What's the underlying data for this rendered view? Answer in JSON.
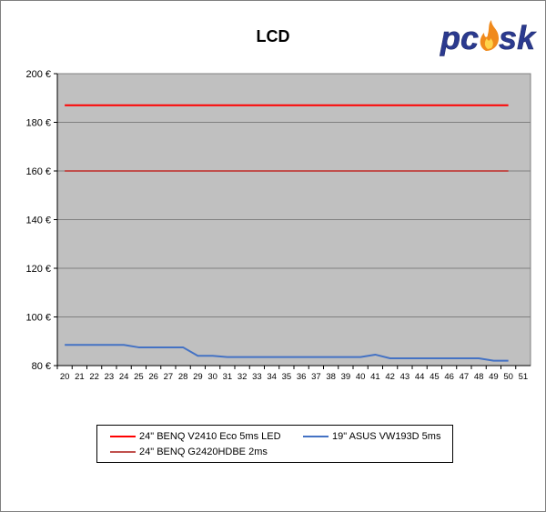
{
  "chart_data": {
    "type": "line",
    "title": "LCD",
    "x": [
      20,
      21,
      22,
      23,
      24,
      25,
      26,
      27,
      28,
      29,
      30,
      31,
      32,
      33,
      34,
      35,
      36,
      37,
      38,
      39,
      40,
      41,
      42,
      43,
      44,
      45,
      46,
      47,
      48,
      49,
      50
    ],
    "xticks": [
      "20",
      "21",
      "22",
      "23",
      "24",
      "25",
      "26",
      "27",
      "28",
      "29",
      "30",
      "31",
      "32",
      "33",
      "34",
      "35",
      "36",
      "37",
      "38",
      "39",
      "40",
      "41",
      "42",
      "43",
      "44",
      "45",
      "46",
      "47",
      "48",
      "49",
      "50",
      "51"
    ],
    "xlim": [
      20,
      51
    ],
    "ylim": [
      80,
      200
    ],
    "yticks": [
      "80 €",
      "100 €",
      "120 €",
      "140 €",
      "160 €",
      "180 €",
      "200 €"
    ],
    "ytick_values": [
      80,
      100,
      120,
      140,
      160,
      180,
      200
    ],
    "grid": true,
    "legend_position": "bottom",
    "series": [
      {
        "name": "24\" BENQ V2410 Eco 5ms LED",
        "color": "#ff0000",
        "values": [
          187,
          187,
          187,
          187,
          187,
          187,
          187,
          187,
          187,
          187,
          187,
          187,
          187,
          187,
          187,
          187,
          187,
          187,
          187,
          187,
          187,
          187,
          187,
          187,
          187,
          187,
          187,
          187,
          187,
          187,
          187
        ]
      },
      {
        "name": "19\" ASUS VW193D 5ms",
        "color": "#4472c4",
        "values": [
          88.5,
          88.5,
          88.5,
          88.5,
          88.5,
          87.5,
          87.5,
          87.5,
          87.5,
          84,
          84,
          83.5,
          83.5,
          83.5,
          83.5,
          83.5,
          83.5,
          83.5,
          83.5,
          83.5,
          83.5,
          84.5,
          83,
          83,
          83,
          83,
          83,
          83,
          83,
          82,
          82
        ]
      },
      {
        "name": "24\" BENQ G2420HDBE 2ms",
        "color": "#c0504d",
        "values": [
          160,
          160,
          160,
          160,
          160,
          160,
          160,
          160,
          160,
          160,
          160,
          160,
          160,
          160,
          160,
          160,
          160,
          160,
          160,
          160,
          160,
          160,
          160,
          160,
          160,
          160,
          160,
          160,
          160,
          160,
          160
        ]
      }
    ]
  },
  "logo": {
    "text": "pcosk"
  },
  "colors": {
    "plot_bg": "#c0c0c0",
    "grid": "#808080"
  }
}
